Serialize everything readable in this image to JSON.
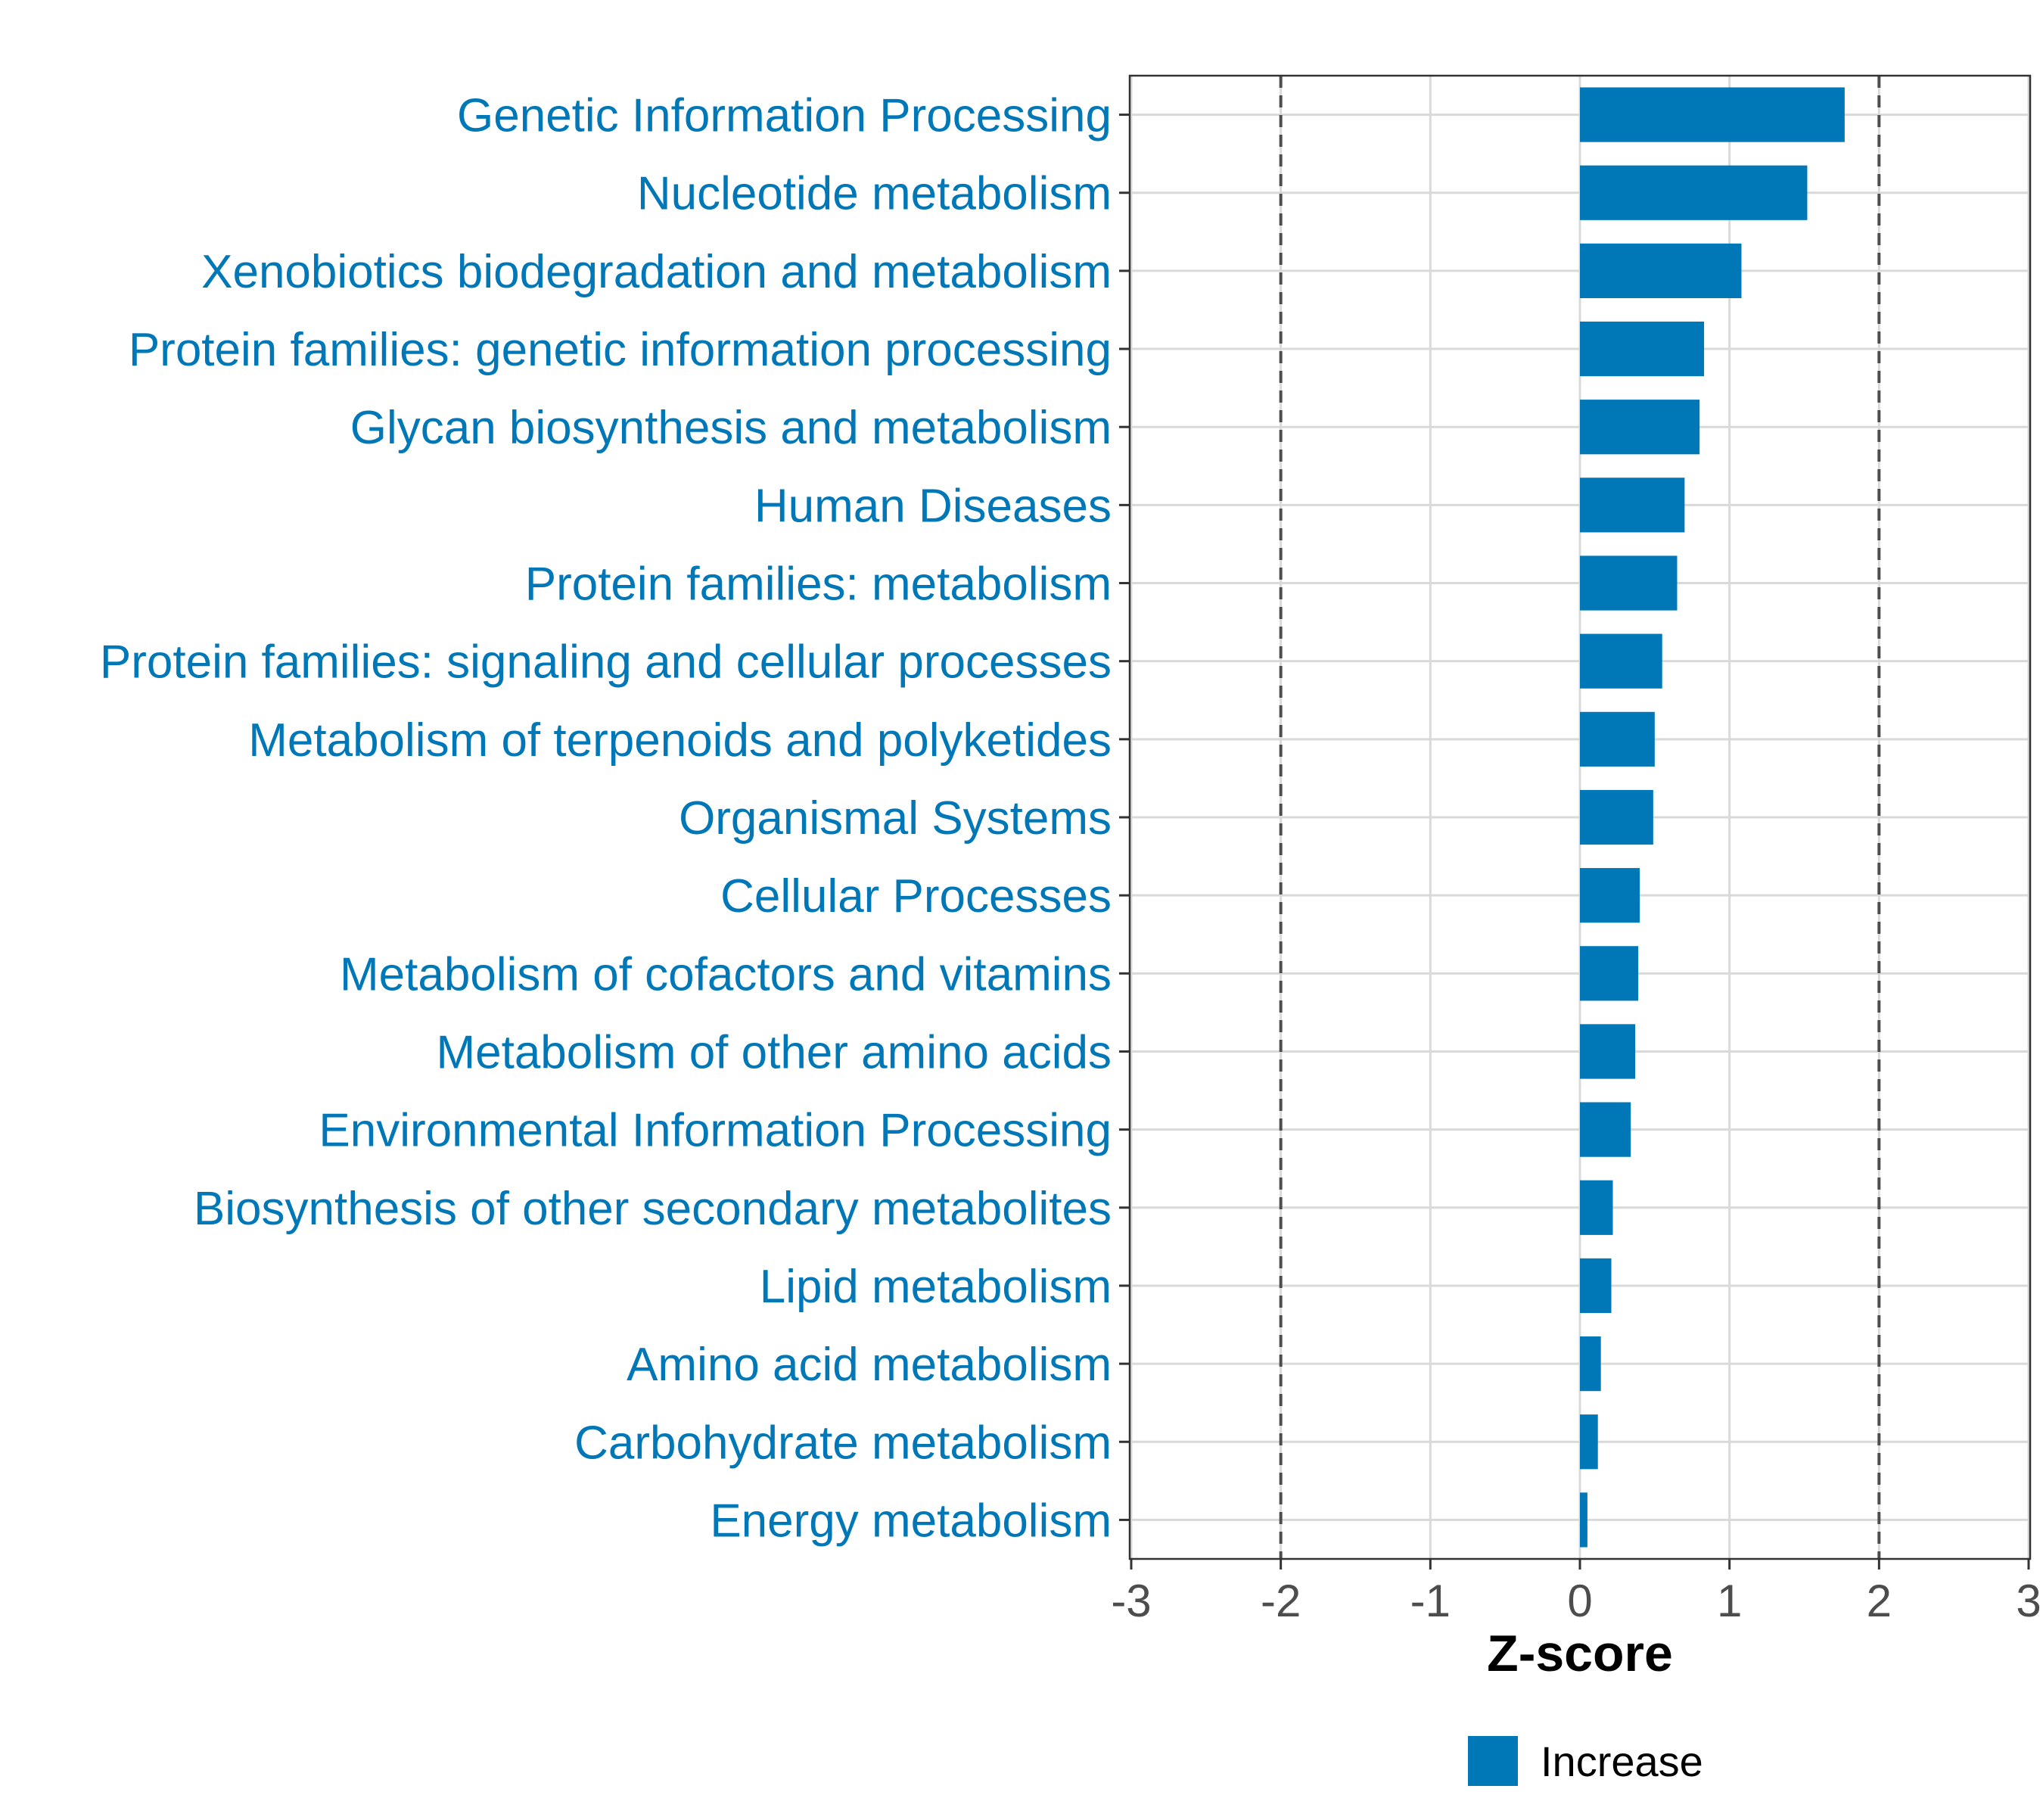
{
  "chart_data": {
    "type": "bar",
    "orientation": "horizontal",
    "categories": [
      "Genetic Information Processing",
      "Nucleotide metabolism",
      "Xenobiotics biodegradation and metabolism",
      "Protein families: genetic information processing",
      "Glycan biosynthesis and metabolism",
      "Human Diseases",
      "Protein families: metabolism",
      "Protein families: signaling and cellular processes",
      "Metabolism of terpenoids and polyketides",
      "Organismal Systems",
      "Cellular Processes",
      "Metabolism of cofactors and vitamins",
      "Metabolism of other amino acids",
      "Environmental Information Processing",
      "Biosynthesis of other secondary metabolites",
      "Lipid metabolism",
      "Amino acid metabolism",
      "Carbohydrate metabolism",
      "Energy metabolism"
    ],
    "series": [
      {
        "name": "Increase",
        "values": [
          1.77,
          1.52,
          1.08,
          0.83,
          0.8,
          0.7,
          0.65,
          0.55,
          0.5,
          0.49,
          0.4,
          0.39,
          0.37,
          0.34,
          0.22,
          0.21,
          0.14,
          0.12,
          0.05
        ]
      }
    ],
    "xlabel": "Z-score",
    "ylabel": "",
    "xlim": [
      -3,
      3
    ],
    "xticks": [
      -3,
      -2,
      -1,
      0,
      1,
      2,
      3
    ],
    "xtick_labels": [
      "-3",
      "-2",
      "-1",
      "0",
      "1",
      "2",
      "3"
    ],
    "reference_lines": [
      -2,
      2
    ],
    "grid": true,
    "legend": {
      "position": "bottom",
      "entries": [
        {
          "label": "Increase",
          "color": "#0077b6"
        }
      ]
    },
    "colors": {
      "bar": "#0077b6",
      "category_label": "#0077b6",
      "tick_label": "#4d4d4d",
      "grid": "#d9d9d9",
      "reference_line": "#4d4d4d",
      "panel_border": "#333333"
    }
  }
}
